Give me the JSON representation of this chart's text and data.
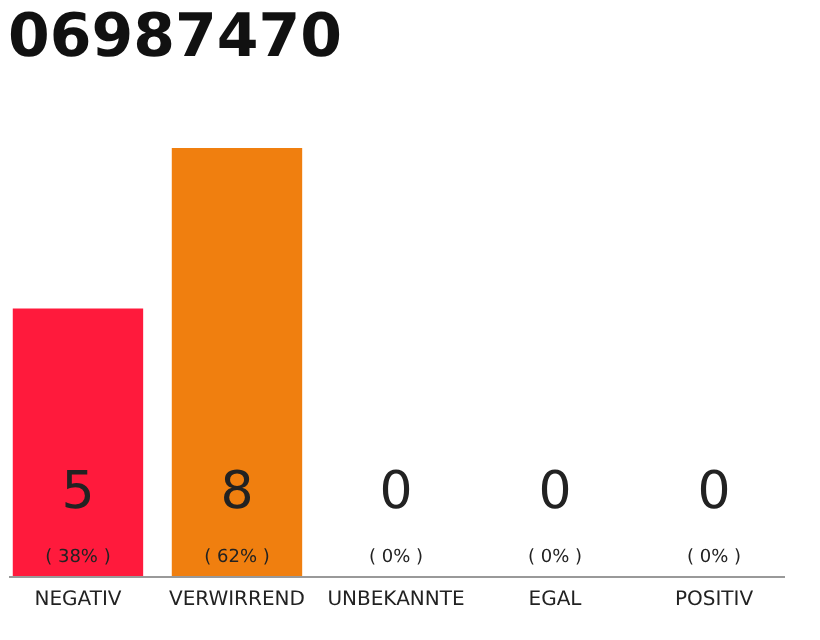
{
  "chart_data": {
    "type": "bar",
    "title": "06987470",
    "categories": [
      "NEGATIV",
      "VERWIRREND",
      "UNBEKANNTE",
      "EGAL",
      "POSITIV"
    ],
    "values": [
      5,
      8,
      0,
      0,
      0
    ],
    "colors": [
      "#ff1a3c",
      "#f07f0f",
      "#aaaaaa",
      "#aaaaaa",
      "#aaaaaa"
    ],
    "value_labels": [
      "5",
      "8",
      "0",
      "0",
      "0"
    ],
    "annotations": [
      "( 38% )",
      "( 62% )",
      "( 0% )",
      "( 0% )",
      "( 0% )"
    ]
  }
}
